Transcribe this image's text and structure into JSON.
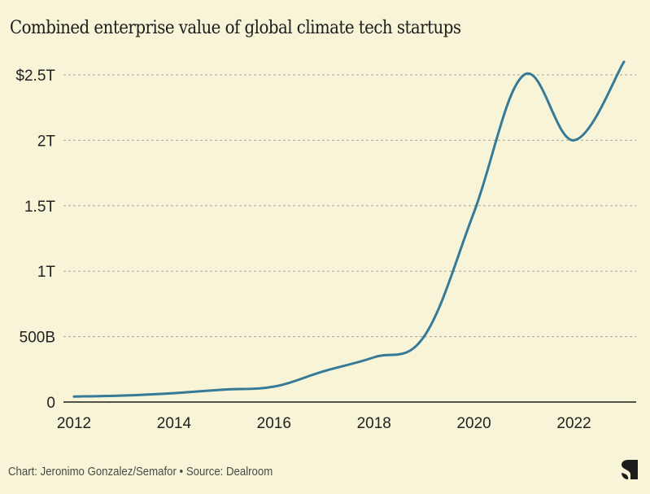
{
  "title": "Combined enterprise value of global climate tech startups",
  "footer": "Chart: Jeronimo Gonzalez/Semafor • Source: Dealroom",
  "logo": "semafor-logo",
  "colors": {
    "background": "#f8f4d8",
    "line": "#357a98",
    "grid": "#a9a89a",
    "axis": "#1c1c1a",
    "text": "#222222"
  },
  "chart_data": {
    "type": "line",
    "title": "Combined enterprise value of global climate tech startups",
    "xlabel": "",
    "ylabel": "",
    "x": [
      2012,
      2013,
      2014,
      2015,
      2016,
      2017,
      2018,
      2019,
      2020,
      2021,
      2022,
      2023
    ],
    "series": [
      {
        "name": "Combined enterprise value (USD trillions)",
        "values": [
          0.042,
          0.05,
          0.068,
          0.095,
          0.118,
          0.236,
          0.342,
          0.5,
          1.45,
          2.5,
          2.0,
          2.6
        ]
      }
    ],
    "xlim": [
      2012,
      2023
    ],
    "ylim": [
      0,
      2.5
    ],
    "yticks": [
      0,
      0.5,
      1,
      1.5,
      2,
      2.5
    ],
    "ytick_labels": [
      "0",
      "500B",
      "1T",
      "1.5T",
      "2T",
      "$2.5T"
    ],
    "xticks": [
      2012,
      2014,
      2016,
      2018,
      2020,
      2022
    ],
    "xtick_labels": [
      "2012",
      "2014",
      "2016",
      "2018",
      "2020",
      "2022"
    ],
    "grid": "horizontal dashed",
    "legend": "none"
  }
}
